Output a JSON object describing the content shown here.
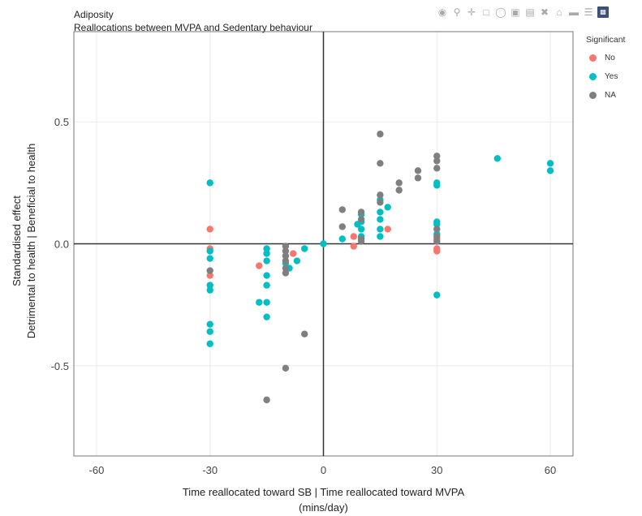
{
  "title": "Adiposity",
  "subtitle": "Reallocations between MVPA and Sedentary behaviour",
  "modebar": [
    "camera-icon",
    "zoom-icon",
    "pan-icon",
    "box-select-icon",
    "lasso-icon",
    "zoom-in-icon",
    "zoom-out-icon",
    "autoscale-icon",
    "reset-axes-icon",
    "spike-lines-icon",
    "compare-data-icon",
    "plotly-logo-icon"
  ],
  "legend": {
    "title": "Significant",
    "items": [
      {
        "label": "No",
        "color": "#f8766d"
      },
      {
        "label": "Yes",
        "color": "#00bfc4"
      },
      {
        "label": "NA",
        "color": "#7f7f7f"
      }
    ]
  },
  "axes": {
    "xlabel_line1": "Time reallocated toward SB | Time reallocated toward MVPA",
    "xlabel_line2": "(mins/day)",
    "ylabel_line1": "Standardised effect",
    "ylabel_line2": "Detrimental to health  |  Beneficial to health"
  },
  "chart_data": {
    "type": "scatter",
    "title": "Adiposity",
    "subtitle": "Reallocations between MVPA and Sedentary behaviour",
    "xlabel": "Time reallocated toward SB | Time reallocated toward MVPA (mins/day)",
    "ylabel": "Standardised effect | Detrimental to health | Beneficial to health",
    "xlim": [
      -66,
      66
    ],
    "ylim": [
      -0.87,
      0.87
    ],
    "xticks": [
      -60,
      -30,
      0,
      30,
      60
    ],
    "yticks": [
      -0.5,
      0.0,
      0.5
    ],
    "xtick_labels": [
      "-60",
      "-30",
      "0",
      "30",
      "60"
    ],
    "ytick_labels": [
      "-0.5",
      "0.0",
      "0.5"
    ],
    "grid": true,
    "legend_position": "top-right",
    "series": [
      {
        "name": "No",
        "color": "#f8766d",
        "points": [
          {
            "x": -30,
            "y": 0.06
          },
          {
            "x": -30,
            "y": -0.02
          },
          {
            "x": -30,
            "y": -0.13
          },
          {
            "x": -17,
            "y": -0.09
          },
          {
            "x": -8,
            "y": -0.04
          },
          {
            "x": 8,
            "y": 0.03
          },
          {
            "x": 8,
            "y": -0.01
          },
          {
            "x": 17,
            "y": 0.06
          },
          {
            "x": 30,
            "y": 0.02
          },
          {
            "x": 30,
            "y": -0.02
          },
          {
            "x": 30,
            "y": -0.03
          }
        ]
      },
      {
        "name": "Yes",
        "color": "#00bfc4",
        "points": [
          {
            "x": -30,
            "y": 0.25
          },
          {
            "x": -30,
            "y": -0.03
          },
          {
            "x": -30,
            "y": -0.06
          },
          {
            "x": -30,
            "y": -0.17
          },
          {
            "x": -30,
            "y": -0.19
          },
          {
            "x": -30,
            "y": -0.33
          },
          {
            "x": -30,
            "y": -0.36
          },
          {
            "x": -30,
            "y": -0.41
          },
          {
            "x": -17,
            "y": -0.24
          },
          {
            "x": -15,
            "y": -0.02
          },
          {
            "x": -15,
            "y": -0.04
          },
          {
            "x": -15,
            "y": -0.07
          },
          {
            "x": -15,
            "y": -0.13
          },
          {
            "x": -15,
            "y": -0.17
          },
          {
            "x": -15,
            "y": -0.24
          },
          {
            "x": -15,
            "y": -0.3
          },
          {
            "x": -10,
            "y": -0.08
          },
          {
            "x": -9,
            "y": -0.1
          },
          {
            "x": -7,
            "y": -0.07
          },
          {
            "x": -5,
            "y": -0.02
          },
          {
            "x": 0,
            "y": 0.0
          },
          {
            "x": 5,
            "y": 0.02
          },
          {
            "x": 9,
            "y": 0.08
          },
          {
            "x": 10,
            "y": 0.09
          },
          {
            "x": 10,
            "y": 0.06
          },
          {
            "x": 10,
            "y": 0.03
          },
          {
            "x": 10,
            "y": 0.12
          },
          {
            "x": 15,
            "y": 0.18
          },
          {
            "x": 15,
            "y": 0.13
          },
          {
            "x": 15,
            "y": 0.1
          },
          {
            "x": 15,
            "y": 0.06
          },
          {
            "x": 15,
            "y": 0.03
          },
          {
            "x": 17,
            "y": 0.15
          },
          {
            "x": 30,
            "y": 0.24
          },
          {
            "x": 30,
            "y": 0.25
          },
          {
            "x": 30,
            "y": 0.09
          },
          {
            "x": 30,
            "y": 0.08
          },
          {
            "x": 30,
            "y": 0.04
          },
          {
            "x": 30,
            "y": -0.21
          },
          {
            "x": 46,
            "y": 0.35
          },
          {
            "x": 60,
            "y": 0.33
          },
          {
            "x": 60,
            "y": 0.3
          }
        ]
      },
      {
        "name": "NA",
        "color": "#7f7f7f",
        "points": [
          {
            "x": -30,
            "y": -0.11
          },
          {
            "x": -10,
            "y": -0.01
          },
          {
            "x": -10,
            "y": -0.03
          },
          {
            "x": -10,
            "y": -0.05
          },
          {
            "x": -10,
            "y": -0.07
          },
          {
            "x": -10,
            "y": -0.1
          },
          {
            "x": -10,
            "y": -0.12
          },
          {
            "x": -10,
            "y": -0.51
          },
          {
            "x": -15,
            "y": -0.64
          },
          {
            "x": -5,
            "y": -0.37
          },
          {
            "x": 5,
            "y": 0.14
          },
          {
            "x": 5,
            "y": 0.07
          },
          {
            "x": 10,
            "y": 0.13
          },
          {
            "x": 10,
            "y": 0.1
          },
          {
            "x": 10,
            "y": 0.02
          },
          {
            "x": 10,
            "y": 0.01
          },
          {
            "x": 15,
            "y": 0.45
          },
          {
            "x": 15,
            "y": 0.33
          },
          {
            "x": 15,
            "y": 0.2
          },
          {
            "x": 15,
            "y": 0.17
          },
          {
            "x": 20,
            "y": 0.25
          },
          {
            "x": 20,
            "y": 0.22
          },
          {
            "x": 25,
            "y": 0.3
          },
          {
            "x": 25,
            "y": 0.27
          },
          {
            "x": 30,
            "y": 0.36
          },
          {
            "x": 30,
            "y": 0.34
          },
          {
            "x": 30,
            "y": 0.31
          },
          {
            "x": 30,
            "y": 0.06
          },
          {
            "x": 30,
            "y": 0.03
          },
          {
            "x": 30,
            "y": 0.01
          }
        ]
      }
    ]
  }
}
